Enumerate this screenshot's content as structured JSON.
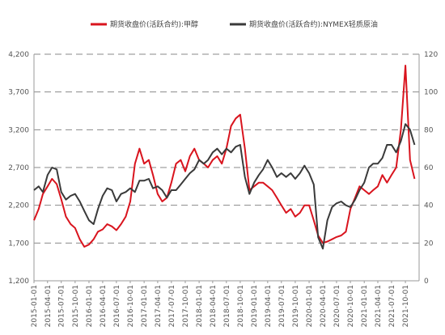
{
  "chart_data": {
    "type": "line",
    "legend": {
      "placement": "top"
    },
    "grid": {
      "horizontal": true,
      "style": "dashed",
      "color": "#8a8a8a"
    },
    "left_axis": {
      "ylim": [
        1200,
        4200
      ],
      "ticks": [
        "1,200",
        "1,700",
        "2,200",
        "2,700",
        "3,200",
        "3,700",
        "4,200"
      ],
      "tick_values": [
        1200,
        1700,
        2200,
        2700,
        3200,
        3700,
        4200
      ]
    },
    "right_axis": {
      "ylim": [
        0,
        120
      ],
      "ticks": [
        "0",
        "20",
        "40",
        "60",
        "80",
        "100",
        "120"
      ],
      "tick_values": [
        0,
        20,
        40,
        60,
        80,
        100,
        120
      ]
    },
    "x_axis": {
      "type": "date",
      "xlim": [
        "2015-01-01",
        "2021-12-31"
      ],
      "ticks": [
        "2015-01-01",
        "2015-04-01",
        "2015-07-01",
        "2015-10-01",
        "2016-01-01",
        "2016-04-01",
        "2016-07-01",
        "2016-10-01",
        "2017-01-01",
        "2017-04-01",
        "2017-07-01",
        "2017-10-01",
        "2018-01-01",
        "2018-04-01",
        "2018-07-01",
        "2018-10-01",
        "2019-01-01",
        "2019-04-01",
        "2019-07-01",
        "2019-10-01",
        "2020-01-01",
        "2020-04-01",
        "2020-07-01",
        "2020-10-01",
        "2021-01-01",
        "2021-04-01",
        "2021-07-01",
        "2021-10-01"
      ]
    },
    "series": [
      {
        "name": "期货收盘价(活跃合约):甲醇",
        "axis": "left",
        "color": "#d9141e",
        "points": [
          [
            "2015-01-01",
            2000
          ],
          [
            "2015-02-01",
            2150
          ],
          [
            "2015-03-01",
            2350
          ],
          [
            "2015-04-01",
            2450
          ],
          [
            "2015-05-01",
            2550
          ],
          [
            "2015-06-01",
            2480
          ],
          [
            "2015-07-01",
            2280
          ],
          [
            "2015-08-01",
            2050
          ],
          [
            "2015-09-01",
            1950
          ],
          [
            "2015-10-01",
            1900
          ],
          [
            "2015-11-01",
            1750
          ],
          [
            "2015-12-01",
            1650
          ],
          [
            "2016-01-01",
            1680
          ],
          [
            "2016-02-01",
            1750
          ],
          [
            "2016-03-01",
            1850
          ],
          [
            "2016-04-01",
            1880
          ],
          [
            "2016-05-01",
            1950
          ],
          [
            "2016-06-01",
            1920
          ],
          [
            "2016-07-01",
            1870
          ],
          [
            "2016-08-01",
            1950
          ],
          [
            "2016-09-01",
            2050
          ],
          [
            "2016-10-01",
            2250
          ],
          [
            "2016-11-01",
            2750
          ],
          [
            "2016-12-01",
            2950
          ],
          [
            "2017-01-01",
            2750
          ],
          [
            "2017-02-01",
            2800
          ],
          [
            "2017-03-01",
            2600
          ],
          [
            "2017-04-01",
            2350
          ],
          [
            "2017-05-01",
            2250
          ],
          [
            "2017-06-01",
            2300
          ],
          [
            "2017-07-01",
            2500
          ],
          [
            "2017-08-01",
            2750
          ],
          [
            "2017-09-01",
            2800
          ],
          [
            "2017-10-01",
            2650
          ],
          [
            "2017-11-01",
            2850
          ],
          [
            "2017-12-01",
            2950
          ],
          [
            "2018-01-01",
            2800
          ],
          [
            "2018-02-01",
            2750
          ],
          [
            "2018-03-01",
            2700
          ],
          [
            "2018-04-01",
            2800
          ],
          [
            "2018-05-01",
            2850
          ],
          [
            "2018-06-01",
            2750
          ],
          [
            "2018-07-01",
            2950
          ],
          [
            "2018-08-01",
            3250
          ],
          [
            "2018-09-01",
            3350
          ],
          [
            "2018-10-01",
            3400
          ],
          [
            "2018-11-01",
            2950
          ],
          [
            "2018-12-01",
            2400
          ],
          [
            "2019-01-01",
            2450
          ],
          [
            "2019-02-01",
            2500
          ],
          [
            "2019-03-01",
            2500
          ],
          [
            "2019-04-01",
            2450
          ],
          [
            "2019-05-01",
            2400
          ],
          [
            "2019-06-01",
            2300
          ],
          [
            "2019-07-01",
            2200
          ],
          [
            "2019-08-01",
            2100
          ],
          [
            "2019-09-01",
            2150
          ],
          [
            "2019-10-01",
            2050
          ],
          [
            "2019-11-01",
            2100
          ],
          [
            "2019-12-01",
            2200
          ],
          [
            "2020-01-01",
            2200
          ],
          [
            "2020-02-01",
            2000
          ],
          [
            "2020-03-01",
            1800
          ],
          [
            "2020-04-01",
            1700
          ],
          [
            "2020-05-01",
            1720
          ],
          [
            "2020-06-01",
            1750
          ],
          [
            "2020-07-01",
            1780
          ],
          [
            "2020-08-01",
            1800
          ],
          [
            "2020-09-01",
            1850
          ],
          [
            "2020-10-01",
            2150
          ],
          [
            "2020-11-01",
            2300
          ],
          [
            "2020-12-01",
            2450
          ],
          [
            "2021-01-01",
            2400
          ],
          [
            "2021-02-01",
            2350
          ],
          [
            "2021-03-01",
            2400
          ],
          [
            "2021-04-01",
            2450
          ],
          [
            "2021-05-01",
            2600
          ],
          [
            "2021-06-01",
            2500
          ],
          [
            "2021-07-01",
            2600
          ],
          [
            "2021-08-01",
            2700
          ],
          [
            "2021-09-01",
            3200
          ],
          [
            "2021-10-01",
            4050
          ],
          [
            "2021-11-01",
            2800
          ],
          [
            "2021-12-01",
            2550
          ]
        ]
      },
      {
        "name": "期货收盘价(活跃合约):NYMEX轻质原油",
        "axis": "right",
        "color": "#3a3a3a",
        "points": [
          [
            "2015-01-01",
            48
          ],
          [
            "2015-02-01",
            50
          ],
          [
            "2015-03-01",
            47
          ],
          [
            "2015-04-01",
            56
          ],
          [
            "2015-05-01",
            60
          ],
          [
            "2015-06-01",
            59
          ],
          [
            "2015-07-01",
            47
          ],
          [
            "2015-08-01",
            43
          ],
          [
            "2015-09-01",
            45
          ],
          [
            "2015-10-01",
            46
          ],
          [
            "2015-11-01",
            42
          ],
          [
            "2015-12-01",
            37
          ],
          [
            "2016-01-01",
            32
          ],
          [
            "2016-02-01",
            30
          ],
          [
            "2016-03-01",
            38
          ],
          [
            "2016-04-01",
            45
          ],
          [
            "2016-05-01",
            49
          ],
          [
            "2016-06-01",
            48
          ],
          [
            "2016-07-01",
            42
          ],
          [
            "2016-08-01",
            46
          ],
          [
            "2016-09-01",
            47
          ],
          [
            "2016-10-01",
            49
          ],
          [
            "2016-11-01",
            47
          ],
          [
            "2016-12-01",
            53
          ],
          [
            "2017-01-01",
            53
          ],
          [
            "2017-02-01",
            54
          ],
          [
            "2017-03-01",
            49
          ],
          [
            "2017-04-01",
            50
          ],
          [
            "2017-05-01",
            48
          ],
          [
            "2017-06-01",
            44
          ],
          [
            "2017-07-01",
            48
          ],
          [
            "2017-08-01",
            48
          ],
          [
            "2017-09-01",
            51
          ],
          [
            "2017-10-01",
            54
          ],
          [
            "2017-11-01",
            57
          ],
          [
            "2017-12-01",
            59
          ],
          [
            "2018-01-01",
            64
          ],
          [
            "2018-02-01",
            62
          ],
          [
            "2018-03-01",
            64
          ],
          [
            "2018-04-01",
            68
          ],
          [
            "2018-05-01",
            70
          ],
          [
            "2018-06-01",
            67
          ],
          [
            "2018-07-01",
            70
          ],
          [
            "2018-08-01",
            68
          ],
          [
            "2018-09-01",
            71
          ],
          [
            "2018-10-01",
            72
          ],
          [
            "2018-11-01",
            55
          ],
          [
            "2018-12-01",
            46
          ],
          [
            "2019-01-01",
            52
          ],
          [
            "2019-02-01",
            56
          ],
          [
            "2019-03-01",
            59
          ],
          [
            "2019-04-01",
            64
          ],
          [
            "2019-05-01",
            60
          ],
          [
            "2019-06-01",
            55
          ],
          [
            "2019-07-01",
            57
          ],
          [
            "2019-08-01",
            55
          ],
          [
            "2019-09-01",
            57
          ],
          [
            "2019-10-01",
            54
          ],
          [
            "2019-11-01",
            57
          ],
          [
            "2019-12-01",
            61
          ],
          [
            "2020-01-01",
            57
          ],
          [
            "2020-02-01",
            51
          ],
          [
            "2020-03-01",
            23
          ],
          [
            "2020-04-01",
            17
          ],
          [
            "2020-05-01",
            32
          ],
          [
            "2020-06-01",
            39
          ],
          [
            "2020-07-01",
            41
          ],
          [
            "2020-08-01",
            42
          ],
          [
            "2020-09-01",
            40
          ],
          [
            "2020-10-01",
            39
          ],
          [
            "2020-11-01",
            43
          ],
          [
            "2020-12-01",
            48
          ],
          [
            "2021-01-01",
            52
          ],
          [
            "2021-02-01",
            60
          ],
          [
            "2021-03-01",
            62
          ],
          [
            "2021-04-01",
            62
          ],
          [
            "2021-05-01",
            65
          ],
          [
            "2021-06-01",
            72
          ],
          [
            "2021-07-01",
            72
          ],
          [
            "2021-08-01",
            68
          ],
          [
            "2021-09-01",
            74
          ],
          [
            "2021-10-01",
            83
          ],
          [
            "2021-11-01",
            80
          ],
          [
            "2021-12-01",
            72
          ]
        ]
      }
    ]
  }
}
